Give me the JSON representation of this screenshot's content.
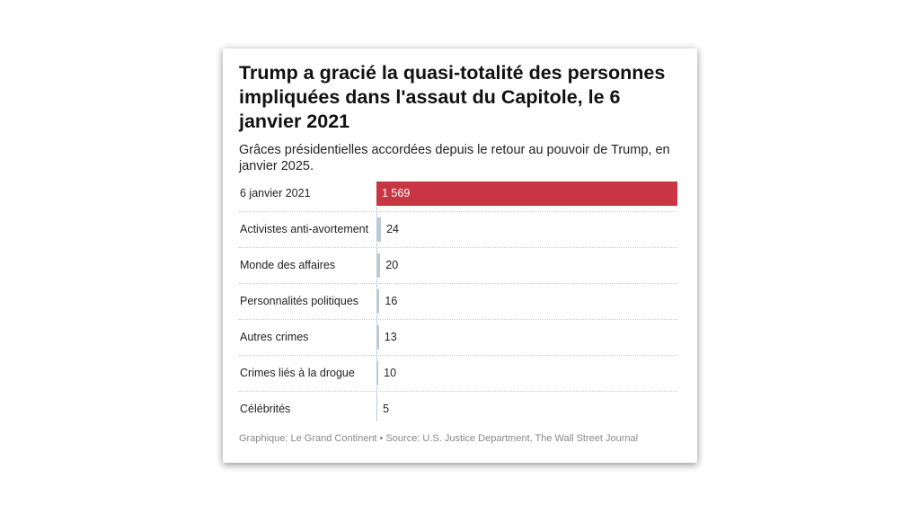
{
  "chart_data": {
    "type": "bar",
    "orientation": "horizontal",
    "title": "Trump a gracié la quasi-totalité des personnes impliquées dans l'assaut du Capitole, le 6 janvier 2021",
    "subtitle": "Grâces présidentielles accordées depuis le retour au pouvoir de Trump, en janvier 2025.",
    "categories": [
      "6 janvier 2021",
      "Activistes anti-avortement",
      "Monde des affaires",
      "Personnalités politiques",
      "Autres crimes",
      "Crimes liés à la drogue",
      "Célébrités"
    ],
    "values": [
      1569,
      24,
      20,
      16,
      13,
      10,
      5
    ],
    "value_labels": [
      "1 569",
      "24",
      "20",
      "16",
      "13",
      "10",
      "5"
    ],
    "xlim": [
      0,
      1569
    ],
    "colors": {
      "highlight": "#c93542",
      "other": "#bfc9d3"
    },
    "footer": "Graphique: Le Grand Continent • Source: U.S. Justice Department, The Wall Street Journal"
  }
}
